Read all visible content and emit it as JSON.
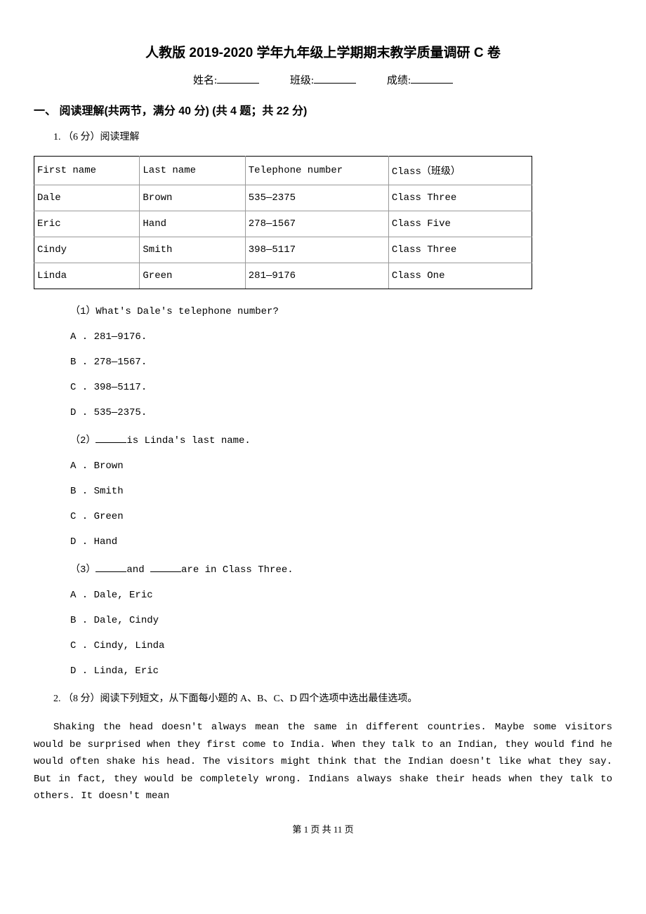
{
  "title": "人教版 2019-2020 学年九年级上学期期末教学质量调研 C 卷",
  "header": {
    "name_label": "姓名:",
    "class_label": "班级:",
    "score_label": "成绩:"
  },
  "section": {
    "heading": "一、 阅读理解(共两节，满分 40 分)  (共 4 题；共 22 分)"
  },
  "q1": {
    "intro": "1. （6 分）阅读理解",
    "table": {
      "columns": [
        "First name",
        "Last name",
        "Telephone number",
        "Class（班级）"
      ],
      "rows": [
        [
          "Dale",
          "Brown",
          "535—2375",
          "Class Three"
        ],
        [
          "Eric",
          "Hand",
          "278—1567",
          "Class Five"
        ],
        [
          "Cindy",
          "Smith",
          "398—5117",
          "Class Three"
        ],
        [
          "Linda",
          "Green",
          "281—9176",
          "Class One"
        ]
      ]
    },
    "sub1": {
      "q": "（1）What's Dale's telephone number?",
      "A": "A . 281—9176.",
      "B": "B . 278—1567.",
      "C": "C . 398—5117.",
      "D": "D . 535—2375."
    },
    "sub2": {
      "q_before": "（2）",
      "q_after": "is Linda's last name.",
      "A": "A . Brown",
      "B": "B . Smith",
      "C": "C . Green",
      "D": "D . Hand"
    },
    "sub3": {
      "q_before": "（3）",
      "q_mid": "and ",
      "q_after": "are in Class Three.",
      "A": "A . Dale, Eric",
      "B": "B . Dale, Cindy",
      "C": "C . Cindy, Linda",
      "D": "D . Linda, Eric"
    }
  },
  "q2": {
    "intro": "2. （8 分）阅读下列短文，从下面每小题的 A、B、C、D 四个选项中选出最佳选项。",
    "paragraph": "Shaking the head doesn't always mean the same in different countries. Maybe some visitors would be surprised when they first come to India. When they talk to an Indian, they would find he would often shake his head. The visitors might think that the Indian doesn't like what they say. But in fact, they would be completely wrong. Indians always shake their heads when they talk to others. It doesn't mean"
  },
  "footer": {
    "text": "第 1 页 共 11 页"
  }
}
